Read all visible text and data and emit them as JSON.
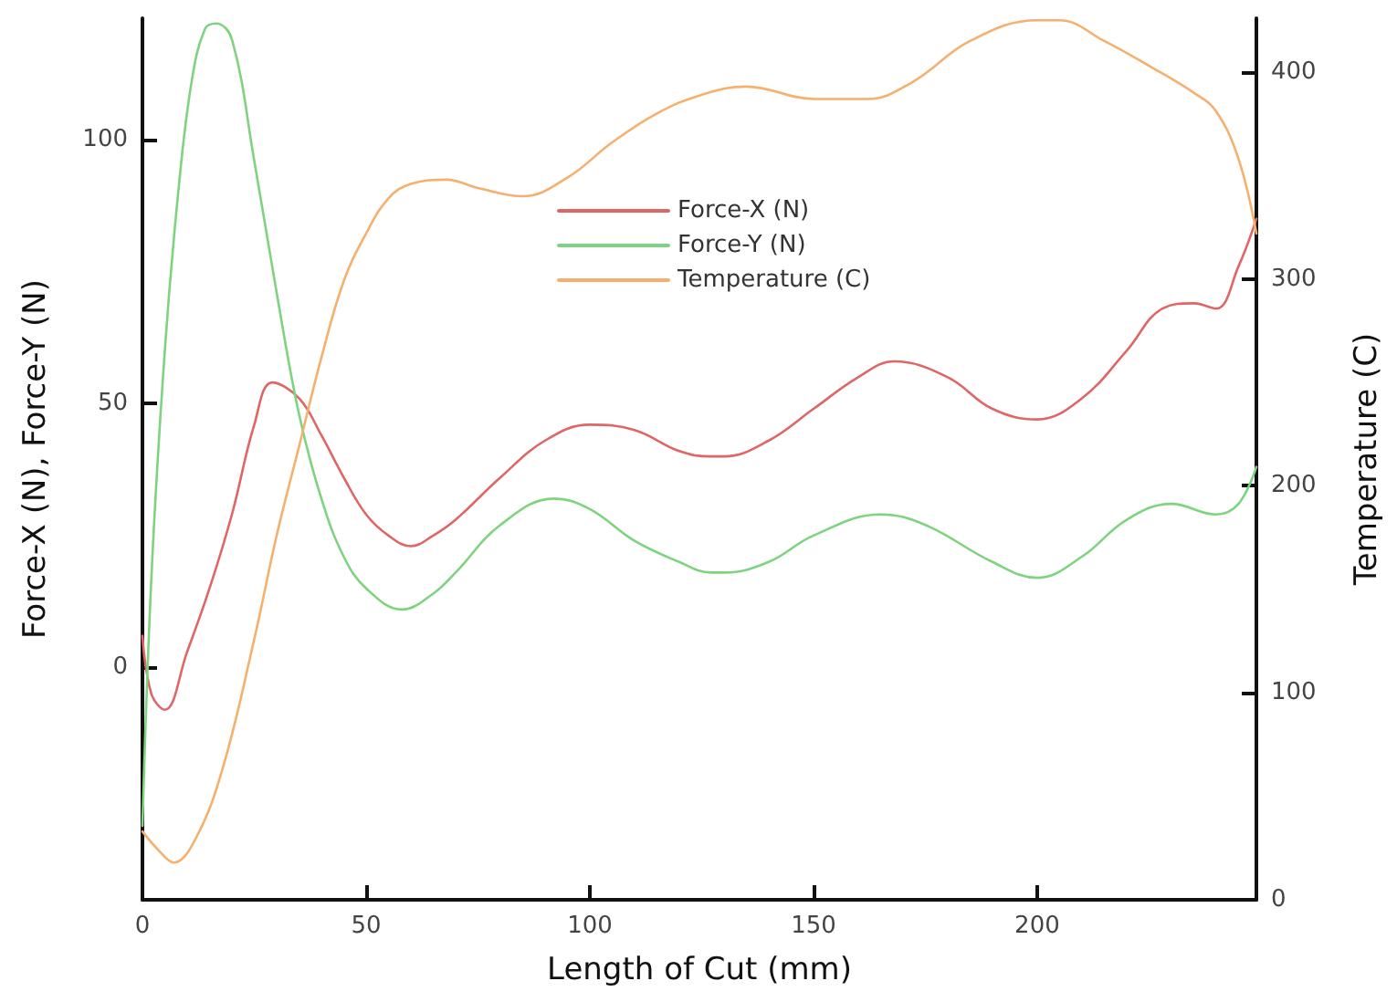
{
  "chart_data": {
    "type": "line",
    "xlabel": "Length of Cut (mm)",
    "ylabel": "Force-X (N), Force-Y (N)",
    "y2label": "Temperature (C)",
    "xlim": [
      0,
      249
    ],
    "xticks": [
      0,
      50,
      100,
      150,
      200
    ],
    "ylim": [
      -44,
      123
    ],
    "yticks": [
      0,
      50,
      100
    ],
    "y2lim": [
      0,
      426
    ],
    "y2ticks": [
      0,
      100,
      200,
      300,
      400
    ],
    "grid": false,
    "legend": "top",
    "marker": "none",
    "line_style": "solid",
    "series": [
      {
        "name": "Force-X (N)",
        "color": "#e06666",
        "x": [
          0,
          2,
          5,
          10,
          15,
          20,
          25,
          29,
          35,
          40,
          45,
          50,
          55,
          60,
          65,
          70,
          80,
          90,
          100,
          110,
          120,
          127,
          130,
          140,
          150,
          160,
          168,
          180,
          190,
          200,
          210,
          220,
          228,
          235,
          240,
          245,
          249
        ],
        "values": [
          6,
          -5,
          -8,
          3,
          15,
          29,
          46,
          54,
          51,
          44,
          36,
          29,
          25,
          23,
          25,
          28,
          36,
          43,
          46,
          45,
          41,
          40,
          40,
          43,
          49,
          55,
          58,
          55,
          49,
          47,
          51,
          60,
          68,
          69,
          68,
          76,
          85
        ]
      },
      {
        "name": "Force-Y (N)",
        "color": "#7ed47e",
        "x": [
          0,
          2,
          5,
          8,
          11,
          14,
          16.5,
          20,
          25,
          30,
          35,
          40,
          45,
          50,
          58,
          65,
          70,
          80,
          92,
          100,
          110,
          120,
          127,
          130,
          140,
          150,
          165,
          175,
          190,
          200,
          210,
          220,
          230,
          240,
          245,
          249
        ],
        "values": [
          -30,
          17,
          60,
          90,
          111,
          121,
          122,
          119,
          96,
          71,
          48,
          32,
          21,
          15,
          11,
          14,
          18,
          27,
          32,
          30,
          24,
          20,
          18,
          18,
          20,
          25,
          29,
          27,
          20,
          17,
          21,
          28,
          31,
          29,
          31,
          38
        ]
      },
      {
        "name": "Temperature (C)",
        "color": "#f5b06e",
        "axis": "y2",
        "x": [
          0,
          4,
          7,
          12,
          18,
          25,
          30,
          35,
          40,
          45,
          50,
          55,
          60,
          68,
          75,
          85,
          95,
          105,
          115,
          125,
          135,
          150,
          162,
          172,
          185,
          200,
          205,
          215,
          225,
          235,
          240,
          245,
          249
        ],
        "values": [
          33,
          23,
          18,
          30,
          64,
          126,
          176,
          219,
          262,
          299,
          322,
          339,
          346,
          348,
          344,
          340,
          349,
          366,
          380,
          389,
          393,
          387,
          387,
          395,
          415,
          425,
          425,
          415,
          403,
          390,
          381,
          358,
          322
        ]
      }
    ]
  }
}
